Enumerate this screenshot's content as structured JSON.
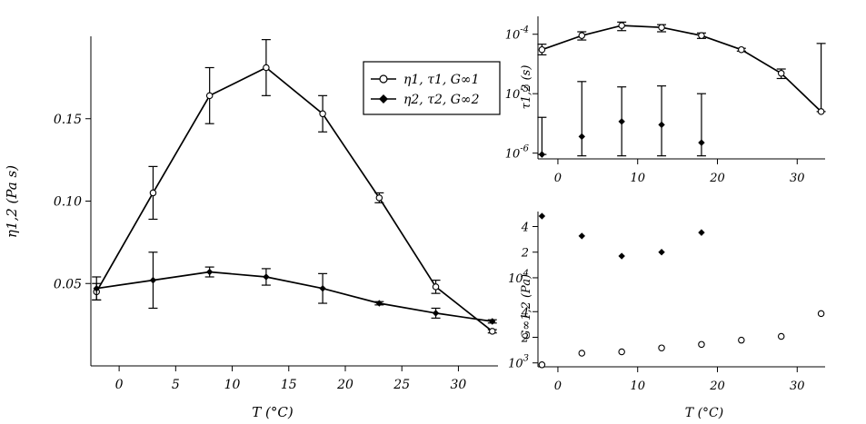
{
  "chart_data": [
    {
      "type": "line",
      "xlabel": "T (°C)",
      "ylabel": "η1,2 (Pa s)",
      "xlim": [
        -2.5,
        33.5
      ],
      "ylim": [
        0.0,
        0.2
      ],
      "xticks": [
        0,
        5,
        10,
        15,
        20,
        25,
        30
      ],
      "xtick_labels": [
        "0",
        "5",
        "10",
        "15",
        "20",
        "25",
        "30"
      ],
      "yticks": [
        0.05,
        0.1,
        0.15
      ],
      "ytick_labels": [
        "0.05",
        "0.10",
        "0.15"
      ],
      "legend": {
        "placement": "top-right",
        "entries": [
          {
            "marker": "open-circle",
            "label": "η1, τ1, G∞1"
          },
          {
            "marker": "filled-diamond",
            "label": "η2, τ2, G∞2"
          }
        ]
      },
      "series": [
        {
          "marker": "open-circle",
          "x": [
            -2,
            3,
            8,
            13,
            18,
            23,
            28,
            33
          ],
          "y": [
            0.045,
            0.105,
            0.164,
            0.181,
            0.153,
            0.102,
            0.048,
            0.021
          ],
          "err": [
            0.005,
            0.016,
            0.017,
            0.017,
            0.011,
            0.003,
            0.004,
            0.001
          ]
        },
        {
          "marker": "filled-diamond",
          "x": [
            -2,
            3,
            8,
            13,
            18,
            23,
            28,
            33
          ],
          "y": [
            0.047,
            0.052,
            0.057,
            0.054,
            0.047,
            0.038,
            0.032,
            0.027
          ],
          "err": [
            0.007,
            0.017,
            0.003,
            0.005,
            0.009,
            0.001,
            0.003,
            0.001
          ]
        }
      ]
    },
    {
      "type": "line",
      "scale_y": "log",
      "xlabel": "",
      "ylabel": "τ1,2 (s)",
      "xlim": [
        -2.5,
        33.5
      ],
      "ylim": [
        8e-07,
        0.0002
      ],
      "xticks": [
        0,
        10,
        20,
        30
      ],
      "xtick_labels": [
        "0",
        "10",
        "20",
        "30"
      ],
      "yticks": [
        1e-06,
        1e-05,
        0.0001
      ],
      "ytick_labels": [
        {
          "base": "10",
          "exp": "-6"
        },
        {
          "base": "10",
          "exp": "-5"
        },
        {
          "base": "10",
          "exp": "-4"
        }
      ],
      "series": [
        {
          "marker": "open-circle",
          "connected": true,
          "x": [
            -2,
            3,
            8,
            13,
            18,
            23,
            28,
            33
          ],
          "y": [
            5.5e-05,
            9.5e-05,
            0.00014,
            0.00013,
            9.5e-05,
            5.5e-05,
            2.2e-05,
            5e-06
          ],
          "err_lo": [
            4.5e-05,
            8e-05,
            0.000115,
            0.00011,
            8.5e-05,
            5.2e-05,
            1.8e-05,
            5e-06
          ],
          "err_hi": [
            6.8e-05,
            0.00011,
            0.00016,
            0.000145,
            0.000105,
            5.8e-05,
            2.6e-05,
            7e-05
          ]
        },
        {
          "marker": "filled-diamond",
          "connected": false,
          "x": [
            -2,
            3,
            8,
            13,
            18
          ],
          "y": [
            9.5e-07,
            1.9e-06,
            3.4e-06,
            3e-06,
            1.5e-06
          ],
          "err_lo": [
            9.5e-07,
            9e-07,
            9e-07,
            9e-07,
            9e-07
          ],
          "err_hi": [
            4e-06,
            1.6e-05,
            1.3e-05,
            1.35e-05,
            1e-05
          ]
        }
      ]
    },
    {
      "type": "scatter",
      "scale_y": "log",
      "xlabel": "T (°C)",
      "ylabel": "G∞1,2 (Pa)",
      "xlim": [
        -2.5,
        33.5
      ],
      "ylim": [
        900,
        60000
      ],
      "xticks": [
        0,
        10,
        20,
        30
      ],
      "xtick_labels": [
        "0",
        "10",
        "20",
        "30"
      ],
      "yticks": [
        1000,
        2000,
        4000,
        10000,
        20000,
        40000
      ],
      "ytick_labels": [
        {
          "base": "10",
          "exp": "3"
        },
        {
          "base": "2",
          "exp": ""
        },
        {
          "base": "4",
          "exp": ""
        },
        {
          "base": "10",
          "exp": "4"
        },
        {
          "base": "2",
          "exp": ""
        },
        {
          "base": "4",
          "exp": ""
        }
      ],
      "series": [
        {
          "marker": "open-circle",
          "x": [
            -2,
            3,
            8,
            13,
            18,
            23,
            28,
            33
          ],
          "y": [
            950,
            1300,
            1350,
            1500,
            1650,
            1850,
            2050,
            3800
          ]
        },
        {
          "marker": "filled-diamond",
          "x": [
            -2,
            3,
            8,
            13,
            18
          ],
          "y": [
            53000,
            31000,
            18000,
            20000,
            34000
          ]
        }
      ]
    }
  ]
}
